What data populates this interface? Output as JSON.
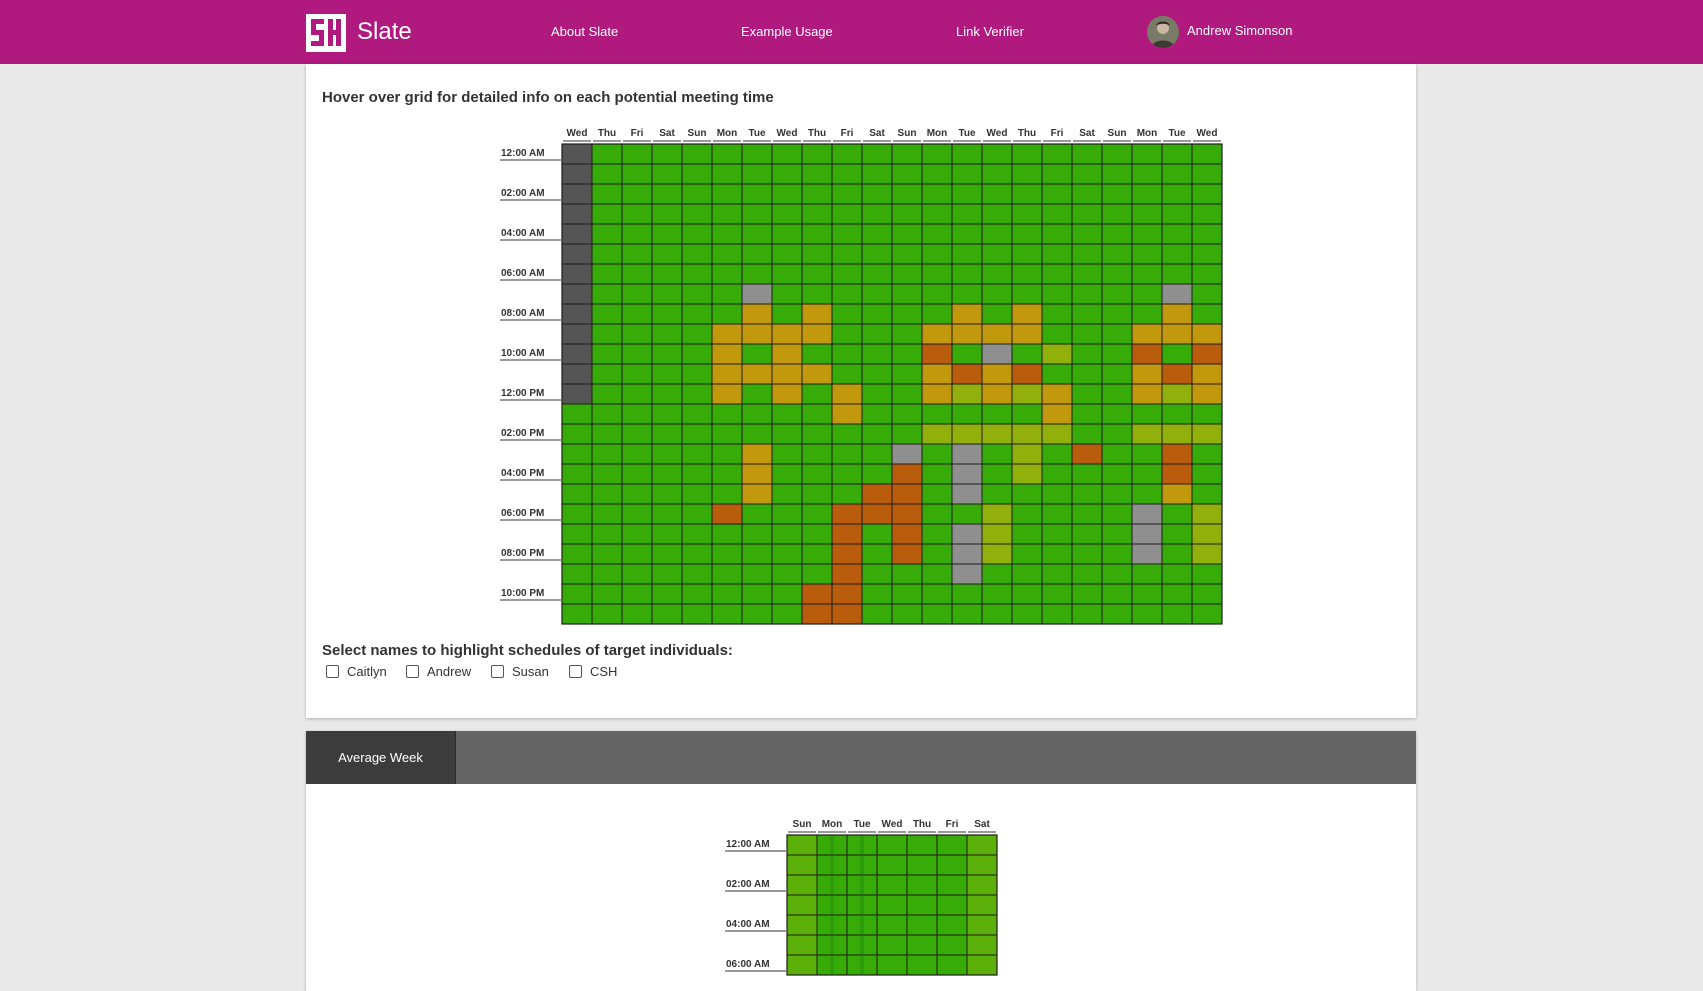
{
  "header": {
    "brand": "Slate",
    "nav": [
      {
        "label": "About Slate"
      },
      {
        "label": "Example Usage"
      },
      {
        "label": "Link Verifier"
      }
    ],
    "user_name": "Andrew Simonson"
  },
  "main_grid": {
    "heading": "Hover over grid for detailed info on each potential meeting time",
    "days": [
      "Wed",
      "Thu",
      "Fri",
      "Sat",
      "Sun",
      "Mon",
      "Tue",
      "Wed",
      "Thu",
      "Fri",
      "Sat",
      "Sun",
      "Mon",
      "Tue",
      "Wed",
      "Thu",
      "Fri",
      "Sat",
      "Sun",
      "Mon",
      "Tue",
      "Wed"
    ],
    "time_labels": [
      "12:00 AM",
      "02:00 AM",
      "04:00 AM",
      "06:00 AM",
      "08:00 AM",
      "10:00 AM",
      "12:00 PM",
      "02:00 PM",
      "04:00 PM",
      "06:00 PM",
      "08:00 PM",
      "10:00 PM"
    ],
    "legend_colors": {
      "G": "#37ac09",
      "D": "#555555",
      "S": "#8f8f8f",
      "Y": "#c2980d",
      "L": "#92b00b",
      "O": "#b95c0b"
    },
    "rows": [
      "DGGGGGGGGGGGGGGGGGGGGG",
      "DGGGGGGGGGGGGGGGGGGGGG",
      "DGGGGGGGGGGGGGGGGGGGGG",
      "DGGGGGGGGGGGGGGGGGGGGG",
      "DGGGGGGGGGGGGGGGGGGGGG",
      "DGGGGGGGGGGGGGGGGGGGGG",
      "DGGGGGGGGGGGGGGGGGGGGG",
      "DGGGGGSGGGGGGGGGGGGGSG",
      "DGGGGGYGYGGGGYGYGGGGYG",
      "DGGGGYYYYGGGYYYYGGGYYY",
      "DGGGGYGYGGGGOGSGLGGOGO",
      "DGGGGYYYYGGGYOYOGGGYOY",
      "DGGGGYGYGYGGYLYLYGGYLY",
      "GGGGGGGGGYGGGGGGYGGGGG",
      "GGGGGGGGGGGGLLLLLGGLLL",
      "GGGGGGYGGGGSGSGLGOGGOG",
      "GGGGGGYGGGGOGSGLGGGGOG",
      "GGGGGGYGGGOOGSGGGGGGYG",
      "GGGGGOGGGOOOGGLGGGGSGL",
      "GGGGGGGGGOGOGSLGGGGSGL",
      "GGGGGGGGGOGOGSLGGGGSGL",
      "GGGGGGGGGOGGGSGGGGGGGG",
      "GGGGGGGGOOGGGGGGGGGGGG",
      "GGGGGGGGOOGGGGGGGGGGGG"
    ]
  },
  "highlight": {
    "heading": "Select names to highlight schedules of target individuals:",
    "names": [
      {
        "label": "Caitlyn",
        "checked": false
      },
      {
        "label": "Andrew",
        "checked": false
      },
      {
        "label": "Susan",
        "checked": false
      },
      {
        "label": "CSH",
        "checked": false
      }
    ]
  },
  "average_week": {
    "tab_label": "Average Week",
    "days": [
      "Sun",
      "Mon",
      "Tue",
      "Wed",
      "Thu",
      "Fri",
      "Sat"
    ],
    "time_labels": [
      "12:00 AM",
      "02:00 AM",
      "04:00 AM",
      "06:00 AM"
    ],
    "legend_colors": {
      "G": "#37ac09",
      "M": "#5bb00a",
      "K": "#2e9c08"
    },
    "rows": [
      "MGGGGGM",
      "MGGGGGM",
      "MGGGGGM",
      "MGGGGGM",
      "MGGGGGM",
      "MGGGGGM",
      "MGGGGGM"
    ]
  }
}
